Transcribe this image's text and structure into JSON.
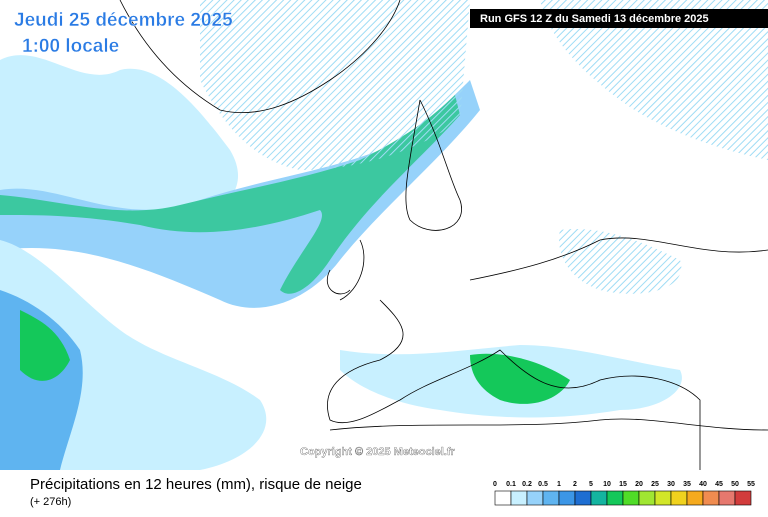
{
  "header": {
    "date": "Jeudi 25 décembre 2025",
    "time": "1:00 locale",
    "run": "Run GFS 12 Z du Samedi 13 décembre 2025"
  },
  "map": {
    "copyright": "Copyright © 2025 Meteociel.fr"
  },
  "footer": {
    "title": "Précipitations en 12 heures (mm), risque de neige",
    "lead": "(+ 276h)"
  },
  "legend": {
    "labels": [
      "0",
      "0.1",
      "0.2",
      "0.5",
      "1",
      "2",
      "5",
      "10",
      "15",
      "20",
      "25",
      "30",
      "35",
      "40",
      "45",
      "50",
      "55"
    ],
    "colors": [
      "#ffffff",
      "#c8f0ff",
      "#96d2fa",
      "#5fb4f0",
      "#3c96e6",
      "#1e6ed2",
      "#14b4a0",
      "#14c85a",
      "#50dc28",
      "#a0e632",
      "#d2e628",
      "#f0d21e",
      "#f5aa1e",
      "#f08c50",
      "#e6786e",
      "#d23c3c"
    ]
  }
}
